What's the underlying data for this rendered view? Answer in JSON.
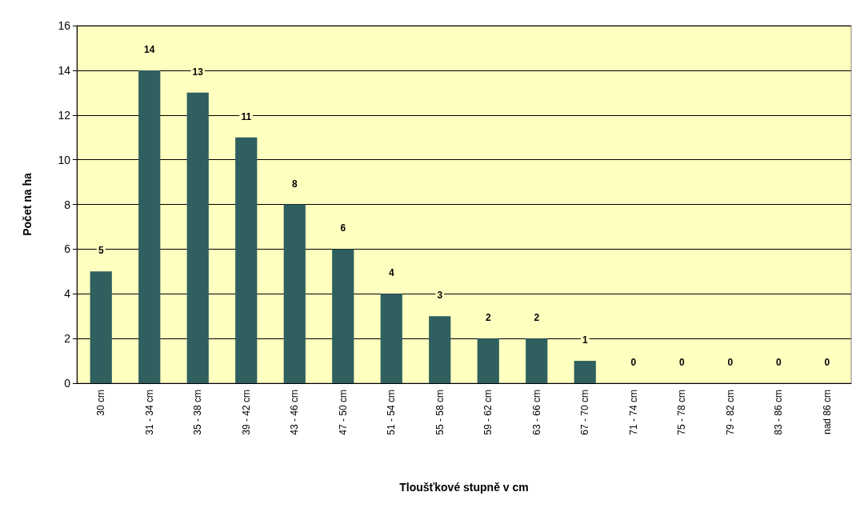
{
  "chart_data": {
    "type": "bar",
    "xlabel": "Tloušťkové stupně v cm",
    "ylabel": "Počet na ha",
    "categories": [
      "30 cm",
      "31 - 34 cm",
      "35 - 38 cm",
      "39 - 42 cm",
      "43 - 46 cm",
      "47 - 50 cm",
      "51 - 54 cm",
      "55 - 58 cm",
      "59 - 62 cm",
      "63 - 66 cm",
      "67 - 70 cm",
      "71 - 74 cm",
      "75 - 78 cm",
      "79 - 82 cm",
      "83 - 86 cm",
      "nad 86 cm"
    ],
    "values": [
      5,
      14,
      13,
      11,
      8,
      6,
      4,
      3,
      2,
      2,
      1,
      0,
      0,
      0,
      0,
      0
    ],
    "color": "#2f5f5f",
    "ylim": [
      0,
      16
    ],
    "yticks": [
      0,
      2,
      4,
      6,
      8,
      10,
      12,
      14,
      16
    ],
    "grid": "y",
    "data_labels": true
  }
}
